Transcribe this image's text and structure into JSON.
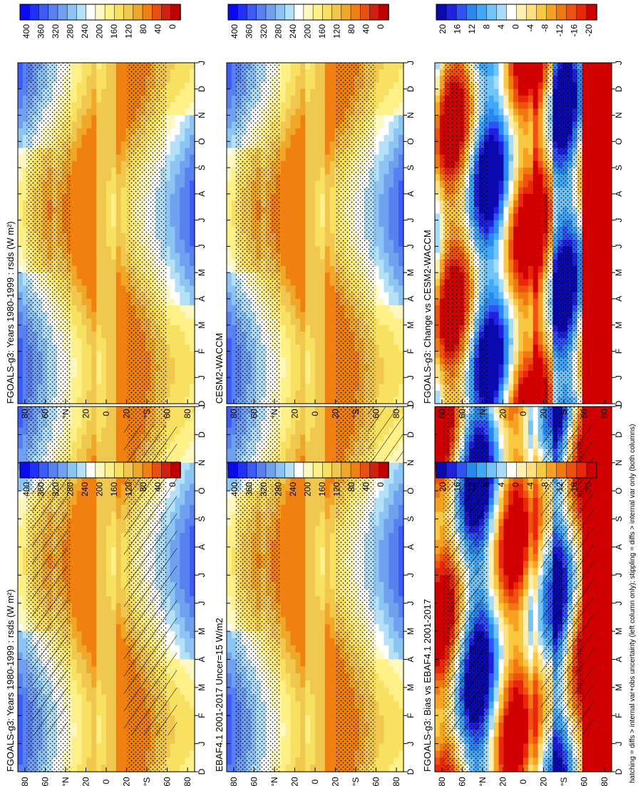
{
  "figure_note": "hatching = diffs > internal var+obs uncertainty (left column only); stippling = diffs > internal var only (both columns)",
  "months": [
    "D",
    "J",
    "F",
    "M",
    "A",
    "M",
    "J",
    "J",
    "A",
    "S",
    "O",
    "N",
    "D",
    "J"
  ],
  "lat_labels": [
    "80",
    "60",
    "°N",
    "20",
    "0",
    "20",
    "°S",
    "60",
    "80"
  ],
  "colors": {
    "abs_scale": [
      "#0a0af0",
      "#2030ff",
      "#3c5cf8",
      "#5880f0",
      "#70a0f0",
      "#8cc4f4",
      "#b4e0f8",
      "#ffffff",
      "#fff8c0",
      "#fff088",
      "#f8e060",
      "#f0c850",
      "#f0a828",
      "#f08010",
      "#e85010",
      "#d02010",
      "#c00000"
    ],
    "diff_scale": [
      "#0a0ab0",
      "#2020e0",
      "#3050f8",
      "#2888f0",
      "#40a8f8",
      "#70c4f8",
      "#a8dcfc",
      "#ffffff",
      "#fff0b0",
      "#ffe080",
      "#f8c840",
      "#f8a020",
      "#f07810",
      "#f05010",
      "#e82808",
      "#d00000"
    ]
  },
  "chart_data": [
    {
      "type": "heatmap",
      "title": "FGOALS-g3: Years 1980-1999 : rsds (W m²)",
      "variable": "rsds",
      "colorbar": [
        "400",
        "360",
        "320",
        "280",
        "240",
        "200",
        "160",
        "120",
        "80",
        "40",
        "0"
      ],
      "crange": [
        0,
        420
      ]
    },
    {
      "type": "heatmap",
      "title": "FGOALS-g3: Years 1980-1999 : rsds (W m²)",
      "variable": "rsds",
      "colorbar": [
        "400",
        "360",
        "320",
        "280",
        "240",
        "200",
        "160",
        "120",
        "80",
        "40",
        "0"
      ],
      "crange": [
        0,
        420
      ]
    },
    {
      "type": "heatmap",
      "title": "EBAF4.1 2001-2017 Uncer=15 W/m2",
      "variable": "rsds",
      "colorbar": [
        "400",
        "360",
        "320",
        "280",
        "240",
        "200",
        "160",
        "120",
        "80",
        "40",
        "0"
      ],
      "crange": [
        0,
        420
      ]
    },
    {
      "type": "heatmap",
      "title": "CESM2-WACCM",
      "variable": "rsds",
      "colorbar": [
        "400",
        "360",
        "320",
        "280",
        "240",
        "200",
        "160",
        "120",
        "80",
        "40",
        "0"
      ],
      "crange": [
        0,
        420
      ]
    },
    {
      "type": "heatmap",
      "title": "FGOALS-g3: Bias vs EBAF4.1 2001-2017",
      "variable": "diff",
      "colorbar": [
        "20",
        "16",
        "12",
        "8",
        "4",
        "0",
        "-4",
        "-8",
        "-12",
        "-16",
        "-20"
      ],
      "crange": [
        -22,
        22
      ]
    },
    {
      "type": "heatmap",
      "title": "FGOALS-g3: Change vs CESM2-WACCM",
      "variable": "diff",
      "colorbar": [
        "20",
        "16",
        "12",
        "8",
        "4",
        "0",
        "-4",
        "-8",
        "-12",
        "-16",
        "-20"
      ],
      "crange": [
        -22,
        22
      ]
    }
  ]
}
